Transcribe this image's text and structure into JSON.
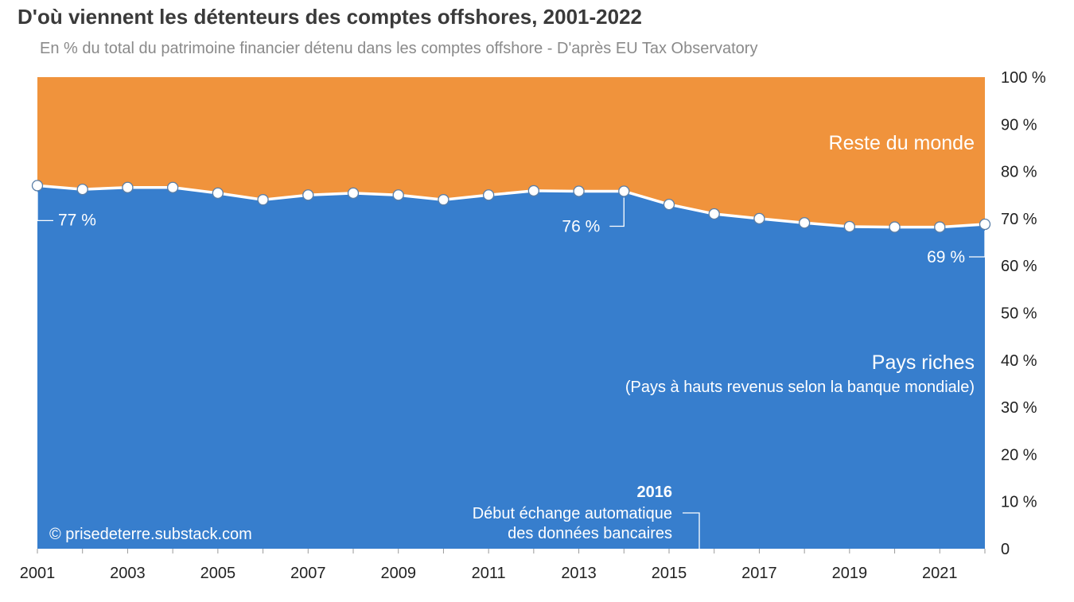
{
  "title": "D'où viennent les détenteurs des comptes offshores, 2001-2022",
  "subtitle": "En % du total du patrimoine financier détenu dans les comptes offshore - D'après EU Tax Observatory",
  "credit": "© prisedeterre.substack.com",
  "colors": {
    "rich": "#377ecd",
    "rest": "#f0933c",
    "line": "#ffffff"
  },
  "chart_data": {
    "type": "area",
    "x": [
      2001,
      2002,
      2003,
      2004,
      2005,
      2006,
      2007,
      2008,
      2009,
      2010,
      2011,
      2012,
      2013,
      2014,
      2015,
      2016,
      2017,
      2018,
      2019,
      2020,
      2021,
      2022
    ],
    "series": [
      {
        "name": "Pays riches",
        "values": [
          77,
          76.2,
          76.6,
          76.6,
          75.4,
          74,
          75,
          75.4,
          75,
          74,
          75,
          75.9,
          75.8,
          75.8,
          73,
          71,
          70,
          69.1,
          68.3,
          68.2,
          68.2,
          68.8
        ]
      },
      {
        "name": "Reste du monde",
        "values": [
          23,
          23.8,
          23.4,
          23.4,
          24.6,
          26,
          25,
          24.6,
          25,
          26,
          25,
          24.1,
          24.2,
          24.2,
          27,
          29,
          30,
          30.9,
          31.7,
          31.8,
          31.8,
          31.2
        ]
      }
    ],
    "ylim": [
      0,
      100
    ],
    "yticks": [
      "0",
      "10 %",
      "20 %",
      "30 %",
      "40 %",
      "50 %",
      "60 %",
      "70 %",
      "80 %",
      "90 %",
      "100 %"
    ],
    "xticks": [
      "2001",
      "2003",
      "2005",
      "2007",
      "2009",
      "2011",
      "2013",
      "2015",
      "2017",
      "2019",
      "2021"
    ],
    "area_labels": {
      "rest": "Reste du monde",
      "rich": "Pays riches",
      "rich_sub": "(Pays à hauts revenus selon la banque mondiale)"
    },
    "point_labels": [
      {
        "year": 2001,
        "text": "77 %"
      },
      {
        "year": 2014,
        "text": "76 %"
      },
      {
        "year": 2022,
        "text": "69 %"
      }
    ],
    "annotation": {
      "year_text": "2016",
      "line1": "Début échange automatique",
      "line2": "des données bancaires"
    }
  }
}
